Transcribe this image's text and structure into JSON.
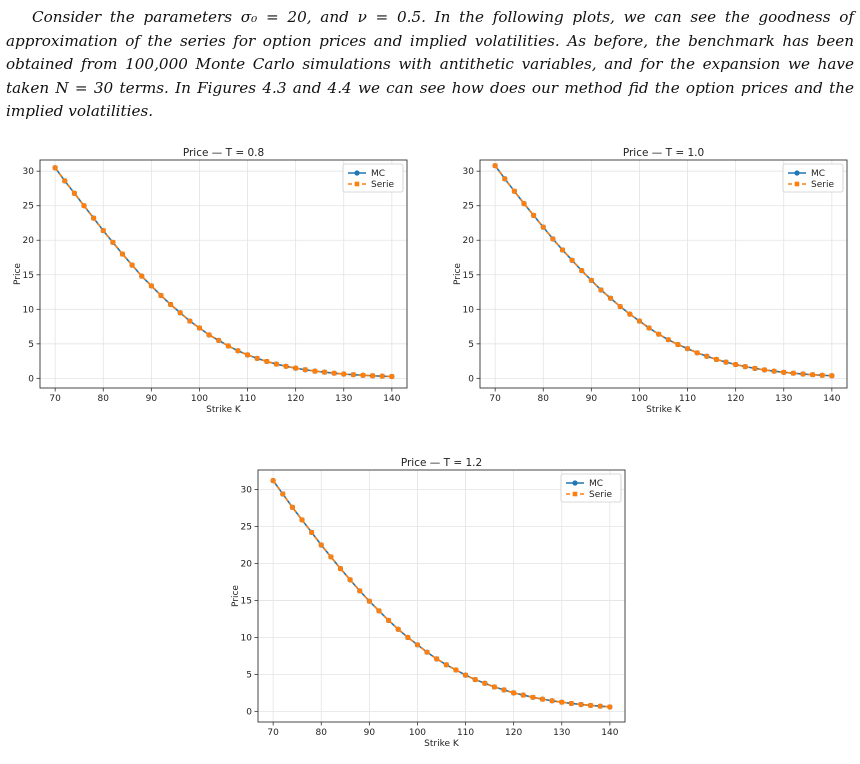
{
  "paragraph": {
    "text": "Consider the parameters σ₀ = 20, and ν = 0.5. In the following plots, we can see the goodness of approximation of the series for option prices and implied volatilities. As before, the benchmark has been obtained from 100,000 Monte Carlo simulations with antithetic variables, and for the expansion we have taken N = 30 terms. In Figures 4.3 and 4.4 we can see how does our method fid the option prices and the implied volatilities."
  },
  "colors": {
    "mc": "#1f77b4",
    "serie": "#ff7f0e"
  },
  "chart_data": [
    {
      "type": "line",
      "title": "Price — T = 0.8",
      "xlabel": "Strike K",
      "ylabel": "Price",
      "xlim": [
        70,
        140
      ],
      "ylim": [
        0,
        31
      ],
      "xticks": [
        70,
        80,
        90,
        100,
        110,
        120,
        130,
        140
      ],
      "yticks": [
        0,
        5,
        10,
        15,
        20,
        25,
        30
      ],
      "grid": true,
      "legend": "top-right",
      "x": [
        70,
        72,
        74,
        76,
        78,
        80,
        82,
        84,
        86,
        88,
        90,
        92,
        94,
        96,
        98,
        100,
        102,
        104,
        106,
        108,
        110,
        112,
        114,
        116,
        118,
        120,
        122,
        124,
        126,
        128,
        130,
        132,
        134,
        136,
        138,
        140
      ],
      "series": [
        {
          "name": "MC",
          "marker": "circle",
          "values": [
            30.5,
            28.6,
            26.8,
            25.0,
            23.2,
            21.4,
            19.7,
            18.0,
            16.4,
            14.8,
            13.4,
            12.0,
            10.7,
            9.5,
            8.3,
            7.3,
            6.3,
            5.5,
            4.7,
            4.0,
            3.4,
            2.9,
            2.45,
            2.07,
            1.75,
            1.48,
            1.25,
            1.05,
            0.9,
            0.75,
            0.63,
            0.53,
            0.45,
            0.38,
            0.32,
            0.27
          ]
        },
        {
          "name": "Serie",
          "marker": "square",
          "values": [
            30.5,
            28.6,
            26.8,
            25.0,
            23.2,
            21.4,
            19.7,
            18.0,
            16.4,
            14.8,
            13.4,
            12.0,
            10.7,
            9.5,
            8.3,
            7.3,
            6.3,
            5.5,
            4.7,
            4.0,
            3.4,
            2.9,
            2.45,
            2.07,
            1.75,
            1.48,
            1.25,
            1.05,
            0.9,
            0.75,
            0.63,
            0.53,
            0.45,
            0.38,
            0.32,
            0.27
          ]
        }
      ]
    },
    {
      "type": "line",
      "title": "Price — T = 1.0",
      "xlabel": "Strike K",
      "ylabel": "Price",
      "xlim": [
        70,
        140
      ],
      "ylim": [
        0,
        31
      ],
      "xticks": [
        70,
        80,
        90,
        100,
        110,
        120,
        130,
        140
      ],
      "yticks": [
        0,
        5,
        10,
        15,
        20,
        25,
        30
      ],
      "grid": true,
      "legend": "top-right",
      "x": [
        70,
        72,
        74,
        76,
        78,
        80,
        82,
        84,
        86,
        88,
        90,
        92,
        94,
        96,
        98,
        100,
        102,
        104,
        106,
        108,
        110,
        112,
        114,
        116,
        118,
        120,
        122,
        124,
        126,
        128,
        130,
        132,
        134,
        136,
        138,
        140
      ],
      "series": [
        {
          "name": "MC",
          "marker": "circle",
          "values": [
            30.8,
            28.9,
            27.1,
            25.3,
            23.6,
            21.9,
            20.2,
            18.6,
            17.1,
            15.6,
            14.2,
            12.8,
            11.6,
            10.4,
            9.3,
            8.3,
            7.3,
            6.4,
            5.6,
            4.9,
            4.3,
            3.7,
            3.2,
            2.75,
            2.35,
            2.0,
            1.7,
            1.45,
            1.23,
            1.04,
            0.88,
            0.75,
            0.63,
            0.53,
            0.45,
            0.38
          ]
        },
        {
          "name": "Serie",
          "marker": "square",
          "values": [
            30.8,
            28.9,
            27.1,
            25.3,
            23.6,
            21.9,
            20.2,
            18.6,
            17.1,
            15.6,
            14.2,
            12.8,
            11.6,
            10.4,
            9.3,
            8.3,
            7.3,
            6.4,
            5.6,
            4.9,
            4.3,
            3.7,
            3.2,
            2.75,
            2.35,
            2.0,
            1.7,
            1.45,
            1.23,
            1.04,
            0.88,
            0.75,
            0.63,
            0.53,
            0.45,
            0.38
          ]
        }
      ]
    },
    {
      "type": "line",
      "title": "Price — T = 1.2",
      "xlabel": "Strike K",
      "ylabel": "Price",
      "xlim": [
        70,
        140
      ],
      "ylim": [
        0,
        32
      ],
      "xticks": [
        70,
        80,
        90,
        100,
        110,
        120,
        130,
        140
      ],
      "yticks": [
        0,
        5,
        10,
        15,
        20,
        25,
        30
      ],
      "grid": true,
      "legend": "top-right",
      "x": [
        70,
        72,
        74,
        76,
        78,
        80,
        82,
        84,
        86,
        88,
        90,
        92,
        94,
        96,
        98,
        100,
        102,
        104,
        106,
        108,
        110,
        112,
        114,
        116,
        118,
        120,
        122,
        124,
        126,
        128,
        130,
        132,
        134,
        136,
        138,
        140
      ],
      "series": [
        {
          "name": "MC",
          "marker": "circle",
          "values": [
            31.2,
            29.4,
            27.6,
            25.9,
            24.2,
            22.5,
            20.9,
            19.3,
            17.8,
            16.3,
            14.9,
            13.6,
            12.3,
            11.1,
            10.0,
            9.0,
            8.0,
            7.1,
            6.3,
            5.6,
            4.9,
            4.3,
            3.8,
            3.3,
            2.9,
            2.5,
            2.2,
            1.9,
            1.65,
            1.43,
            1.24,
            1.07,
            0.93,
            0.8,
            0.7,
            0.6
          ]
        },
        {
          "name": "Serie",
          "marker": "square",
          "values": [
            31.2,
            29.4,
            27.6,
            25.9,
            24.2,
            22.5,
            20.9,
            19.3,
            17.8,
            16.3,
            14.9,
            13.6,
            12.3,
            11.1,
            10.0,
            9.0,
            8.0,
            7.1,
            6.3,
            5.6,
            4.9,
            4.3,
            3.8,
            3.3,
            2.9,
            2.5,
            2.2,
            1.9,
            1.65,
            1.43,
            1.24,
            1.07,
            0.93,
            0.8,
            0.7,
            0.6
          ]
        }
      ]
    }
  ]
}
